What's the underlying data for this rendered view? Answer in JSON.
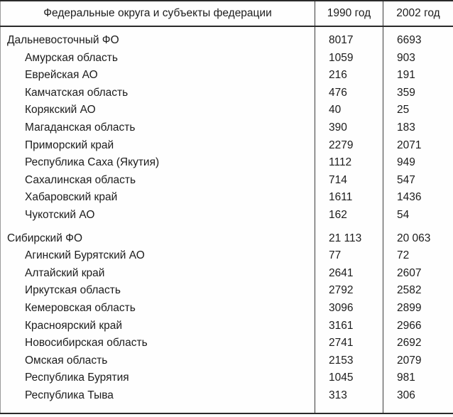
{
  "colors": {
    "background": "#fefefe",
    "text": "#1c1c1c",
    "rule_strong": "#2a2a2a",
    "rule_side": "#9a9a9a",
    "grid_vertical": "#3a3a3a"
  },
  "table": {
    "columns": [
      "Федеральные округа и субъекты федерации",
      "1990 год",
      "2002 год"
    ],
    "rows": [
      {
        "name": "Дальневосточный ФО",
        "level": "section",
        "y1990": "8017",
        "y2002": "6693"
      },
      {
        "name": "Амурская область",
        "level": "sub",
        "y1990": "1059",
        "y2002": "903"
      },
      {
        "name": "Еврейская АО",
        "level": "sub",
        "y1990": "216",
        "y2002": "191"
      },
      {
        "name": "Камчатская область",
        "level": "sub",
        "y1990": "476",
        "y2002": "359"
      },
      {
        "name": "Корякский АО",
        "level": "sub",
        "y1990": "40",
        "y2002": "25"
      },
      {
        "name": "Магаданская область",
        "level": "sub",
        "y1990": "390",
        "y2002": "183"
      },
      {
        "name": "Приморский край",
        "level": "sub",
        "y1990": "2279",
        "y2002": "2071"
      },
      {
        "name": "Республика Саха (Якутия)",
        "level": "sub",
        "y1990": "1112",
        "y2002": "949"
      },
      {
        "name": "Сахалинская область",
        "level": "sub",
        "y1990": "714",
        "y2002": "547"
      },
      {
        "name": "Хабаровский край",
        "level": "sub",
        "y1990": "1611",
        "y2002": "1436"
      },
      {
        "name": "Чукотский АО",
        "level": "sub",
        "y1990": "162",
        "y2002": "54"
      },
      {
        "name": "Сибирский ФО",
        "level": "section",
        "y1990": "21 113",
        "y2002": "20 063"
      },
      {
        "name": "Агинский Бурятский АО",
        "level": "sub",
        "y1990": "77",
        "y2002": "72"
      },
      {
        "name": "Алтайский край",
        "level": "sub",
        "y1990": "2641",
        "y2002": "2607"
      },
      {
        "name": "Иркутская область",
        "level": "sub",
        "y1990": "2792",
        "y2002": "2582"
      },
      {
        "name": "Кемеровская область",
        "level": "sub",
        "y1990": "3096",
        "y2002": "2899"
      },
      {
        "name": "Красноярский край",
        "level": "sub",
        "y1990": "3161",
        "y2002": "2966"
      },
      {
        "name": "Новосибирская область",
        "level": "sub",
        "y1990": "2741",
        "y2002": "2692"
      },
      {
        "name": "Омская область",
        "level": "sub",
        "y1990": "2153",
        "y2002": "2079"
      },
      {
        "name": "Республика Бурятия",
        "level": "sub",
        "y1990": "1045",
        "y2002": "981"
      },
      {
        "name": "Республика Тыва",
        "level": "sub",
        "y1990": "313",
        "y2002": "306"
      }
    ]
  }
}
